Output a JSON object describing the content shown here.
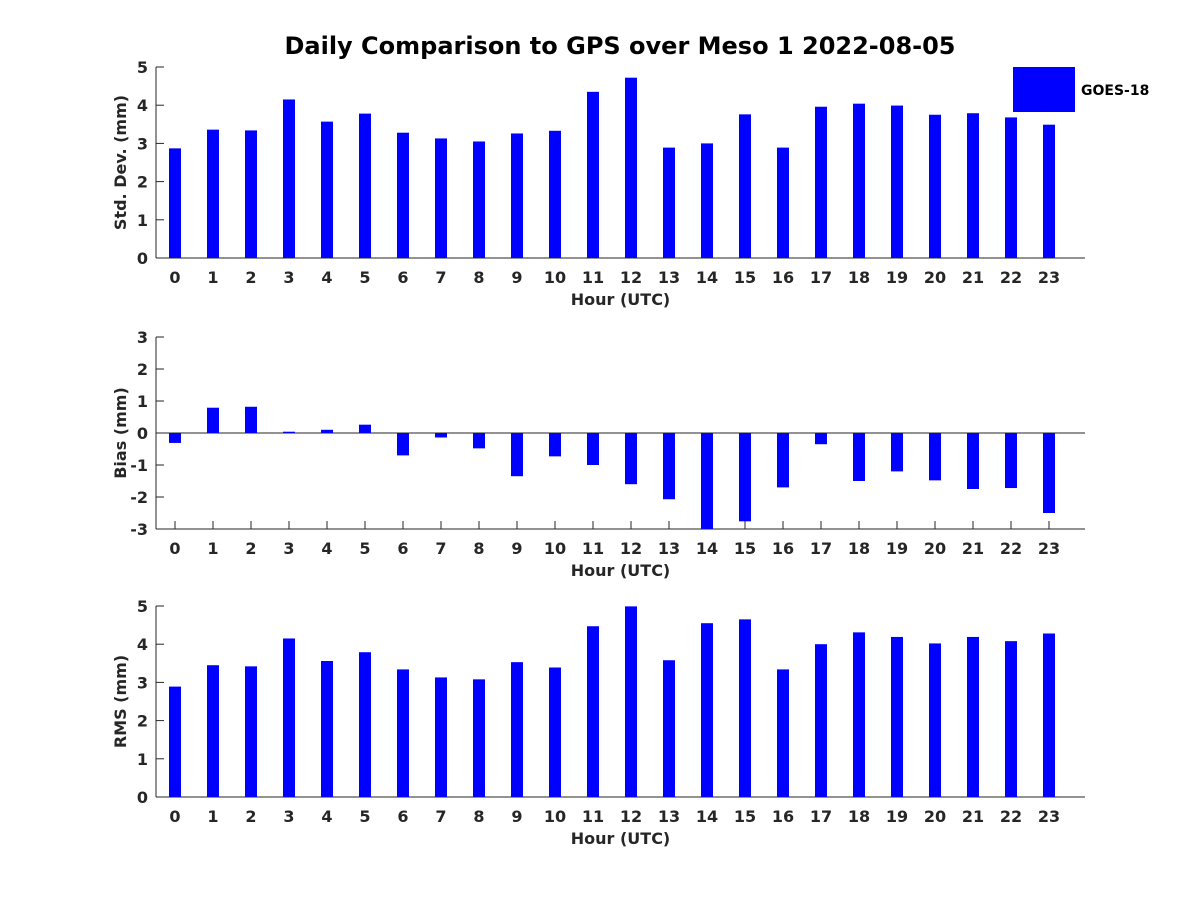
{
  "chart_data": {
    "type": "bar",
    "title": "Daily Comparison to GPS over Meso 1 2022-08-05",
    "bar_color": "#0000ff",
    "legend": {
      "label": "GOES-18",
      "placement": "top-right"
    },
    "categories": [
      "0",
      "1",
      "2",
      "3",
      "4",
      "5",
      "6",
      "7",
      "8",
      "9",
      "10",
      "11",
      "12",
      "13",
      "14",
      "15",
      "16",
      "17",
      "18",
      "19",
      "20",
      "21",
      "22",
      "23"
    ],
    "panels": [
      {
        "name": "stddev",
        "ylabel": "Std. Dev. (mm)",
        "xlabel": "Hour (UTC)",
        "ylim": [
          0,
          5
        ],
        "yticks": [
          0,
          1,
          2,
          3,
          4,
          5
        ],
        "values": [
          2.87,
          3.36,
          3.34,
          4.15,
          3.57,
          3.78,
          3.28,
          3.13,
          3.05,
          3.26,
          3.33,
          4.35,
          4.72,
          2.89,
          3.0,
          3.76,
          2.89,
          3.96,
          4.04,
          3.99,
          3.75,
          3.79,
          3.68,
          3.49
        ]
      },
      {
        "name": "bias",
        "ylabel": "Bias (mm)",
        "xlabel": "Hour (UTC)",
        "ylim": [
          -3,
          3
        ],
        "yticks": [
          -3,
          -2,
          -1,
          0,
          1,
          2,
          3
        ],
        "zero_line": true,
        "values": [
          -0.31,
          0.79,
          0.82,
          0.04,
          0.1,
          0.26,
          -0.7,
          -0.14,
          -0.48,
          -1.35,
          -0.73,
          -1.0,
          -1.6,
          -2.07,
          -3.0,
          -2.76,
          -1.7,
          -0.35,
          -1.5,
          -1.2,
          -1.48,
          -1.75,
          -1.72,
          -2.5
        ]
      },
      {
        "name": "rms",
        "ylabel": "RMS (mm)",
        "xlabel": "Hour (UTC)",
        "ylim": [
          0,
          5
        ],
        "yticks": [
          0,
          1,
          2,
          3,
          4,
          5
        ],
        "values": [
          2.89,
          3.45,
          3.42,
          4.15,
          3.56,
          3.79,
          3.34,
          3.13,
          3.08,
          3.53,
          3.39,
          4.47,
          4.99,
          3.58,
          4.55,
          4.65,
          3.34,
          4.0,
          4.31,
          4.19,
          4.02,
          4.19,
          4.08,
          4.28
        ]
      }
    ]
  }
}
